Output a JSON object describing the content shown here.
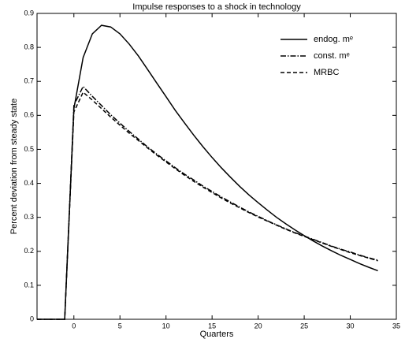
{
  "chart_data": {
    "type": "line",
    "title": "Impulse responses to a shock in technology",
    "xlabel": "Quarters",
    "ylabel": "Percent deviation from steady state",
    "x": [
      -4,
      -3,
      -2,
      -1,
      0,
      1,
      2,
      3,
      4,
      5,
      6,
      7,
      8,
      9,
      10,
      11,
      12,
      13,
      14,
      15,
      16,
      17,
      18,
      19,
      20,
      21,
      22,
      23,
      24,
      25,
      26,
      27,
      28,
      29,
      30,
      31,
      32,
      33
    ],
    "series": [
      {
        "name": "endog. mᵉ",
        "color": "#000000",
        "dash": "none",
        "values": [
          0,
          0,
          0,
          0,
          0.62,
          0.77,
          0.84,
          0.865,
          0.86,
          0.84,
          0.81,
          0.775,
          0.735,
          0.695,
          0.655,
          0.615,
          0.578,
          0.542,
          0.508,
          0.476,
          0.446,
          0.418,
          0.391,
          0.366,
          0.343,
          0.321,
          0.3,
          0.281,
          0.263,
          0.246,
          0.23,
          0.215,
          0.201,
          0.188,
          0.176,
          0.164,
          0.153,
          0.143
        ]
      },
      {
        "name": "const. mᵉ",
        "color": "#000000",
        "dash": "7 2 1.5 2",
        "values": [
          0,
          0,
          0,
          0,
          0.63,
          0.685,
          0.656,
          0.629,
          0.602,
          0.577,
          0.553,
          0.53,
          0.507,
          0.486,
          0.466,
          0.446,
          0.427,
          0.41,
          0.392,
          0.376,
          0.36,
          0.345,
          0.33,
          0.316,
          0.303,
          0.29,
          0.278,
          0.266,
          0.255,
          0.245,
          0.235,
          0.225,
          0.215,
          0.206,
          0.198,
          0.189,
          0.181,
          0.174
        ]
      },
      {
        "name": "MRBC",
        "color": "#000000",
        "dash": "5 3",
        "values": [
          0,
          0,
          0,
          0,
          0.61,
          0.668,
          0.645,
          0.62,
          0.595,
          0.571,
          0.548,
          0.526,
          0.504,
          0.483,
          0.463,
          0.443,
          0.424,
          0.406,
          0.389,
          0.373,
          0.357,
          0.342,
          0.328,
          0.314,
          0.301,
          0.289,
          0.277,
          0.265,
          0.254,
          0.244,
          0.234,
          0.224,
          0.214,
          0.205,
          0.196,
          0.188,
          0.18,
          0.172
        ]
      }
    ],
    "xlim": [
      -4,
      35
    ],
    "xticks": [
      0,
      5,
      10,
      15,
      20,
      25,
      30,
      35
    ],
    "ylim": [
      0,
      0.9
    ],
    "yticks": [
      0,
      0.1,
      0.2,
      0.3,
      0.4,
      0.5,
      0.6,
      0.7,
      0.8,
      0.9
    ],
    "grid": false,
    "legend": "upper right"
  }
}
